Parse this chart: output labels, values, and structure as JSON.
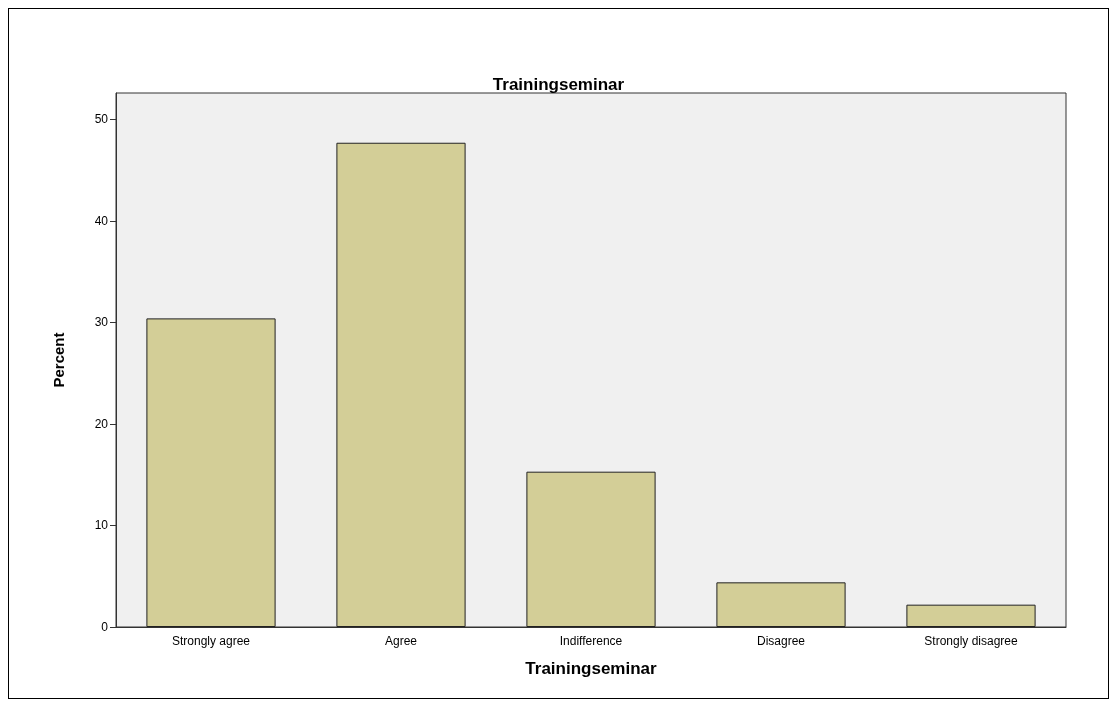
{
  "chart_data": {
    "type": "bar",
    "title": "Trainingseminar",
    "xlabel": "Trainingseminar",
    "ylabel": "Percent",
    "categories": [
      "Strongly agree",
      "Agree",
      "Indifference",
      "Disagree",
      "Strongly disagree"
    ],
    "values": [
      30.4,
      47.7,
      15.3,
      4.4,
      2.2
    ],
    "color": "#d3ce97",
    "ylim": [
      0,
      52.6
    ],
    "yticks": [
      0,
      10,
      20,
      30,
      40,
      50
    ]
  }
}
